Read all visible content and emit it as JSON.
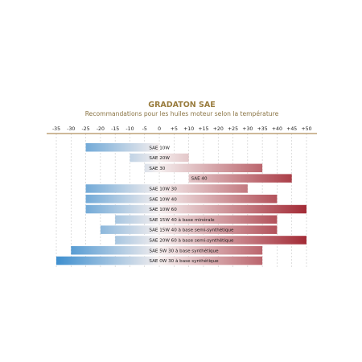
{
  "colors": {
    "title": "#9a7d3f",
    "subtitle": "#8a7444",
    "axis": "#b08f5e",
    "grid": "#c9c9c9",
    "cold": "#3e8fcf",
    "mid": "#f4eeee",
    "hot": "#a32b36"
  },
  "chart_data": {
    "type": "bar",
    "orientation": "horizontal-range",
    "title": "GRADATON SAE",
    "subtitle": "Recommandations pour les huiles moteur selon la température",
    "x_ticks": [
      "-35",
      "-30",
      "-25",
      "-20",
      "-15",
      "-10",
      "-5",
      "0",
      "+5",
      "+10",
      "+15",
      "+20",
      "+25",
      "+30",
      "+35",
      "+40",
      "+45",
      "+50"
    ],
    "x_tick_values": [
      -35,
      -30,
      -25,
      -20,
      -15,
      -10,
      -5,
      0,
      5,
      10,
      15,
      20,
      25,
      30,
      35,
      40,
      45,
      50
    ],
    "xlim": [
      -35,
      50
    ],
    "grid": true,
    "bars": [
      {
        "label": "SAE 10W",
        "start": -25,
        "end": 0
      },
      {
        "label": "SAE 20W",
        "start": -10,
        "end": 10
      },
      {
        "label": "SAE 30",
        "start": -5,
        "end": 35
      },
      {
        "label": "SAE 40",
        "start": 10,
        "end": 45
      },
      {
        "label": "SAE 10W 30",
        "start": -25,
        "end": 30
      },
      {
        "label": "SAE 10W 40",
        "start": -25,
        "end": 40
      },
      {
        "label": "SAE 10W 60",
        "start": -25,
        "end": 50
      },
      {
        "label": "SAE 15W 40 à base minérale",
        "start": -15,
        "end": 40
      },
      {
        "label": "SAE 15W 40 à base semi-synthétique",
        "start": -20,
        "end": 40
      },
      {
        "label": "SAE 20W 60 à base semi-synthétique",
        "start": -15,
        "end": 50
      },
      {
        "label": "SAE 5W 30 à base synthétique",
        "start": -30,
        "end": 35
      },
      {
        "label": "SAE 0W 30 à base synthétique",
        "start": -35,
        "end": 35
      }
    ]
  }
}
